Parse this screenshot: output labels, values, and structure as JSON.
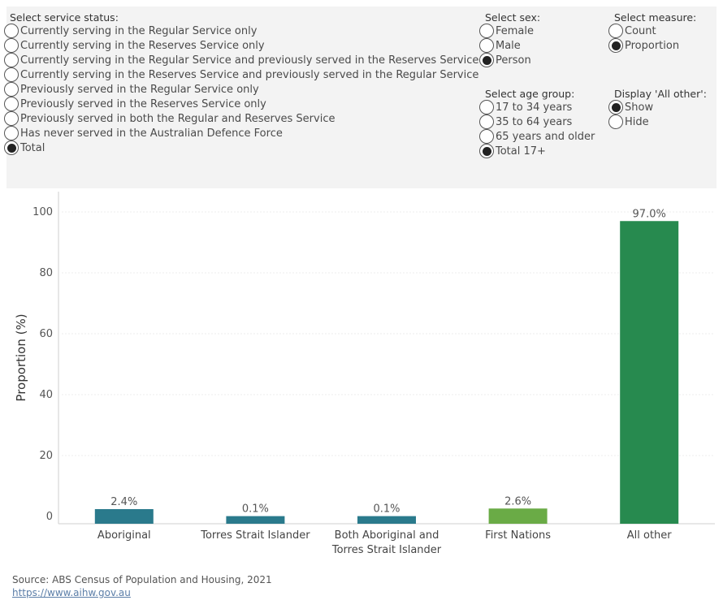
{
  "filters": {
    "service_status": {
      "title": "Select service status:",
      "selected": 8,
      "options": [
        "Currently serving in the Regular Service only",
        "Currently serving in the Reserves Service only",
        "Currently serving in the Regular Service and previously served in the Reserves Service",
        "Currently serving in the Reserves Service and previously served in the Regular Service",
        "Previously served in the Regular Service only",
        "Previously served in the Reserves Service only",
        "Previously served in both the Regular and Reserves Service",
        "Has never served in the Australian Defence Force",
        "Total"
      ]
    },
    "sex": {
      "title": "Select sex:",
      "selected": 2,
      "options": [
        "Female",
        "Male",
        "Person"
      ]
    },
    "age_group": {
      "title": "Select age group:",
      "selected": 3,
      "options": [
        "17 to 34 years",
        "35 to 64 years",
        "65 years and older",
        "Total 17+"
      ]
    },
    "measure": {
      "title": "Select measure:",
      "selected": 1,
      "options": [
        "Count",
        "Proportion"
      ]
    },
    "all_other": {
      "title": "Display 'All other':",
      "selected": 0,
      "options": [
        "Show",
        "Hide"
      ]
    }
  },
  "chart_data": {
    "type": "bar",
    "title": "",
    "xlabel": "",
    "ylabel": "Proportion (%)",
    "ylim": [
      0,
      100
    ],
    "yticks": [
      0,
      20,
      40,
      60,
      80,
      100
    ],
    "grid": true,
    "categories": [
      [
        "Aboriginal"
      ],
      [
        "Torres Strait Islander"
      ],
      [
        "Both Aboriginal and",
        "Torres Strait Islander"
      ],
      [
        "First Nations"
      ],
      [
        "All other"
      ]
    ],
    "values": [
      2.4,
      0.1,
      0.1,
      2.6,
      97.0
    ],
    "value_labels": [
      "2.4%",
      "0.1%",
      "0.1%",
      "2.6%",
      "97.0%"
    ],
    "colors": [
      "#2a7a8c",
      "#2a7a8c",
      "#2a7a8c",
      "#6aab46",
      "#278a4f"
    ]
  },
  "source": {
    "text": "Source: ABS Census of Population and Housing, 2021",
    "link": "https://www.aihw.gov.au"
  }
}
